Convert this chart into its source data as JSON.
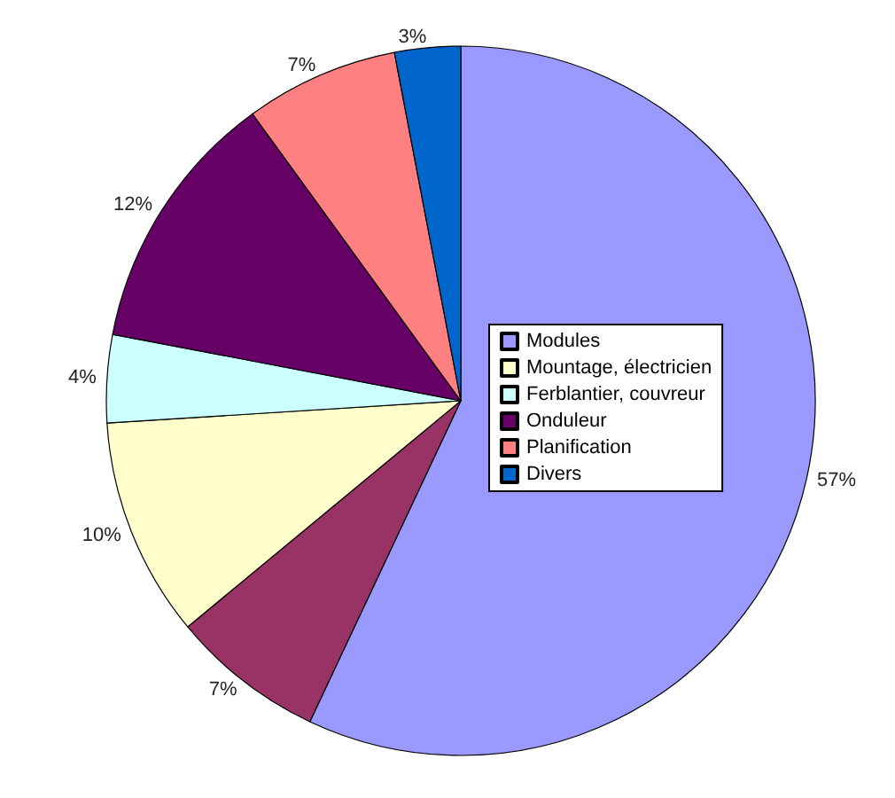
{
  "chart_data": {
    "type": "pie",
    "categories": [
      "Modules",
      null,
      "Mountage, électricien",
      "Ferblantier, couvreur",
      "Onduleur",
      "Planification",
      "Divers"
    ],
    "values": [
      57,
      7,
      10,
      4,
      12,
      7,
      3
    ],
    "value_labels": [
      "57%",
      "7%",
      "10%",
      "4%",
      "12%",
      "7%",
      "3%"
    ],
    "colors": [
      "#9999ff",
      "#993366",
      "#ffffcc",
      "#ccffff",
      "#660066",
      "#ff8080",
      "#0066cc"
    ],
    "legend": "right"
  }
}
